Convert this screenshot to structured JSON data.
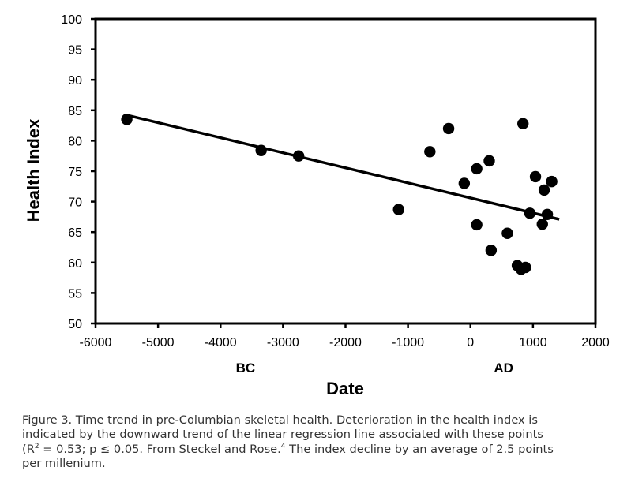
{
  "chart_data": {
    "type": "scatter",
    "xlabel": "Date",
    "ylabel": "Health Index",
    "xlim": [
      -6000,
      2000
    ],
    "ylim": [
      50,
      100
    ],
    "x_ticks": [
      -6000,
      -5000,
      -4000,
      -3000,
      -2000,
      -1000,
      0,
      1000,
      2000
    ],
    "y_ticks": [
      50,
      55,
      60,
      65,
      70,
      75,
      80,
      85,
      90,
      95,
      100
    ],
    "x_tick_labels": [
      "-6000",
      "-5000",
      "-4000",
      "-3000",
      "-2000",
      "-1000",
      "0",
      "1000",
      "2000"
    ],
    "y_tick_labels": [
      "50",
      "55",
      "60",
      "65",
      "70",
      "75",
      "80",
      "85",
      "90",
      "95",
      "100"
    ],
    "era_labels": [
      {
        "text": "BC",
        "x": -3600
      },
      {
        "text": "AD",
        "x": 530
      }
    ],
    "grid": false,
    "legend": "none",
    "points": [
      {
        "x": -5500,
        "y": 83.5
      },
      {
        "x": -3350,
        "y": 78.4
      },
      {
        "x": -2750,
        "y": 77.5
      },
      {
        "x": -1150,
        "y": 68.7
      },
      {
        "x": -650,
        "y": 78.2
      },
      {
        "x": -350,
        "y": 82.0
      },
      {
        "x": -100,
        "y": 73.0
      },
      {
        "x": 100,
        "y": 75.4
      },
      {
        "x": 100,
        "y": 66.2
      },
      {
        "x": 300,
        "y": 76.7
      },
      {
        "x": 330,
        "y": 62.0
      },
      {
        "x": 590,
        "y": 64.8
      },
      {
        "x": 750,
        "y": 59.5
      },
      {
        "x": 810,
        "y": 58.9
      },
      {
        "x": 880,
        "y": 59.2
      },
      {
        "x": 840,
        "y": 82.8
      },
      {
        "x": 950,
        "y": 68.1
      },
      {
        "x": 1040,
        "y": 74.1
      },
      {
        "x": 1150,
        "y": 66.3
      },
      {
        "x": 1180,
        "y": 71.9
      },
      {
        "x": 1230,
        "y": 67.9
      },
      {
        "x": 1300,
        "y": 73.3
      }
    ],
    "regression_line": [
      {
        "x": -5500,
        "y": 84.2
      },
      {
        "x": 1420,
        "y": 67.1
      }
    ],
    "colors": {
      "points": "#000000",
      "line": "#000000",
      "axis": "#000000"
    }
  },
  "caption": {
    "line1": "Figure 3. Time trend in pre-Columbian skeletal health. Deterioration in the health index is",
    "line2": "indicated by the downward trend of the linear regression line associated with these points",
    "line3_a": "(R",
    "line3_sup1": "2",
    "line3_b": " = 0.53; p ≤ 0.05. From Steckel and Rose.",
    "line3_sup2": "4",
    "line3_c": " The index decline by an average of 2.5 points",
    "line4": "per millenium."
  }
}
